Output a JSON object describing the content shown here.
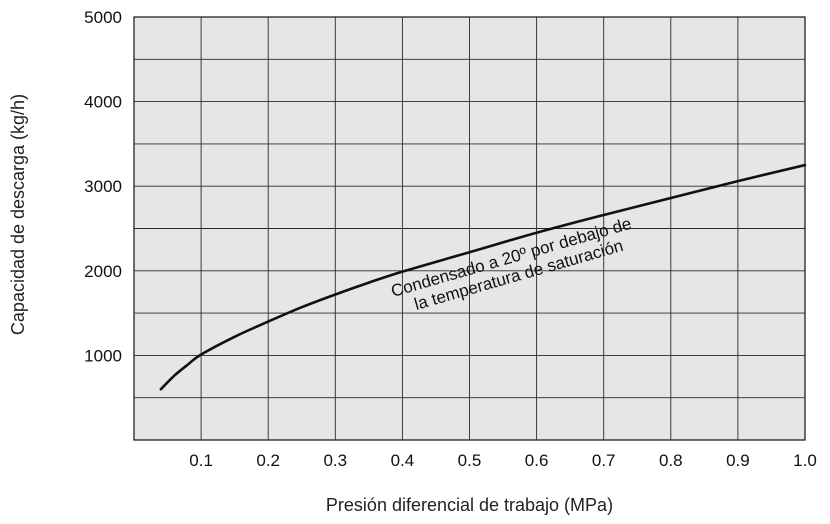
{
  "chart_data": {
    "type": "line",
    "xlabel": "Presión diferencial de trabajo (MPa)",
    "ylabel": "Capacidad de descarga (kg/h)",
    "xlim": [
      0,
      1.0
    ],
    "ylim": [
      0,
      5000
    ],
    "x_ticks": [
      "0.1",
      "0.2",
      "0.3",
      "0.4",
      "0.5",
      "0.6",
      "0.7",
      "0.8",
      "0.9",
      "1.0"
    ],
    "y_ticks": [
      "1000",
      "2000",
      "3000",
      "4000",
      "5000"
    ],
    "grid": true,
    "plot_background": "#e6e6e6",
    "line_color": "#111111",
    "series": [
      {
        "x": [
          0.04,
          0.06,
          0.08,
          0.1,
          0.15,
          0.2,
          0.25,
          0.3,
          0.35,
          0.4,
          0.5,
          0.6,
          0.7,
          0.8,
          0.9,
          1.0
        ],
        "y": [
          600,
          760,
          890,
          1010,
          1220,
          1400,
          1570,
          1720,
          1860,
          1990,
          2220,
          2450,
          2660,
          2860,
          3060,
          3250
        ]
      }
    ],
    "annotation": {
      "lines": [
        "Condensado a 20º por debajo de",
        "la temperatura de saturación"
      ],
      "rotation_deg": -16
    }
  }
}
